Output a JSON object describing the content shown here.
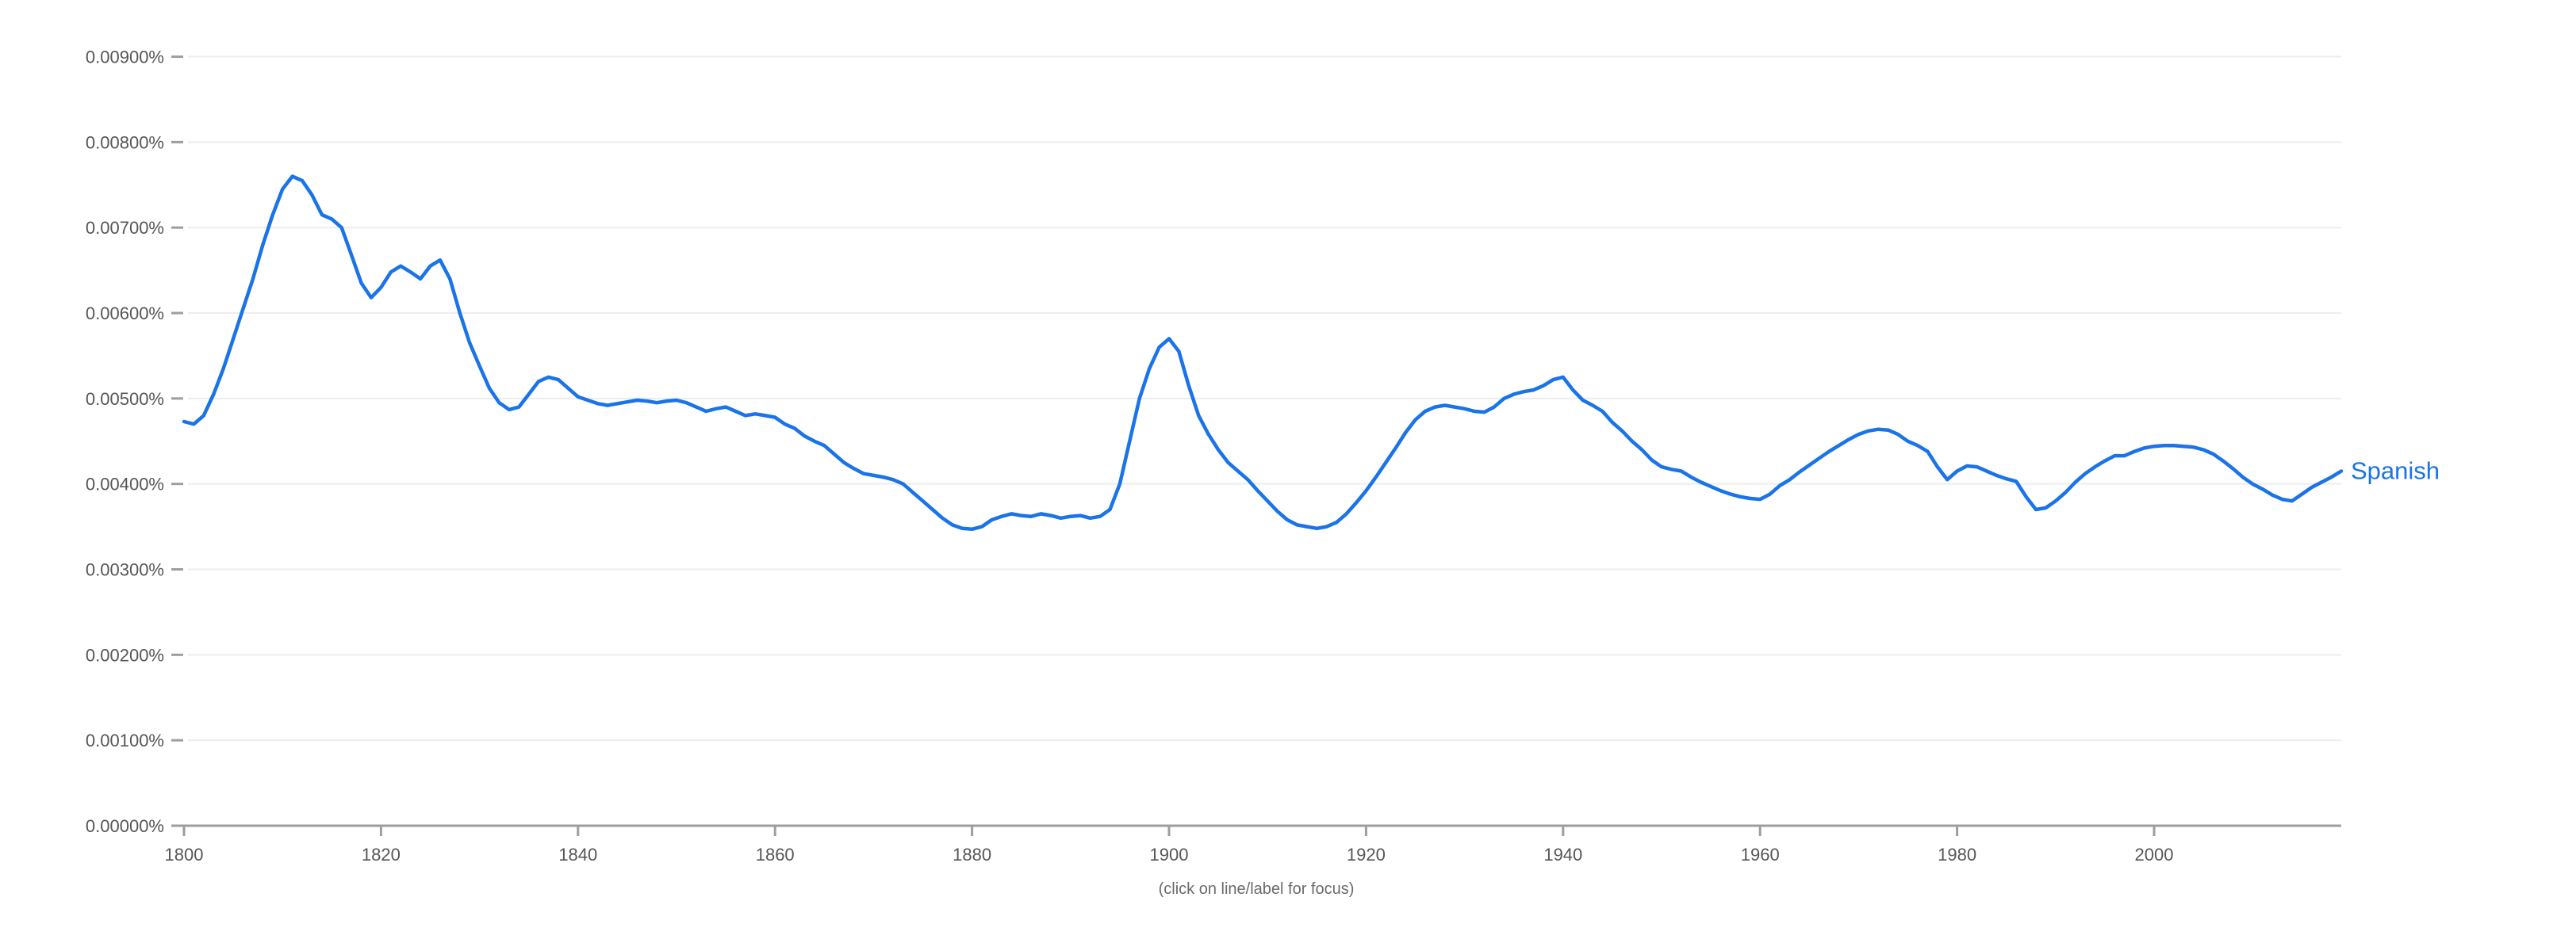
{
  "footer": {
    "hint": "(click on line/label for focus)"
  },
  "chart_data": {
    "type": "line",
    "title": "",
    "xlabel": "",
    "ylabel": "",
    "grid": "horizontal-only",
    "legend": "inline-label-at-line-end",
    "x_range": [
      1800,
      2019
    ],
    "ylim": [
      0,
      0.009
    ],
    "x_ticks": [
      1800,
      1820,
      1840,
      1860,
      1880,
      1900,
      1920,
      1940,
      1960,
      1980,
      2000
    ],
    "y_ticks": [
      {
        "value": 0.0,
        "label": "0.00000%"
      },
      {
        "value": 0.001,
        "label": "0.00100%"
      },
      {
        "value": 0.002,
        "label": "0.00200%"
      },
      {
        "value": 0.003,
        "label": "0.00300%"
      },
      {
        "value": 0.004,
        "label": "0.00400%"
      },
      {
        "value": 0.005,
        "label": "0.00500%"
      },
      {
        "value": 0.006,
        "label": "0.00600%"
      },
      {
        "value": 0.007,
        "label": "0.00700%"
      },
      {
        "value": 0.008,
        "label": "0.00800%"
      },
      {
        "value": 0.009,
        "label": "0.00900%"
      }
    ],
    "colors": {
      "series_blue": "#1a73e8",
      "grid_line": "#ededed",
      "axis_line": "#9e9e9e",
      "tick_mark": "#9e9e9e",
      "tick_label": "#565656",
      "footer_text": "#6b6b6b"
    },
    "series": [
      {
        "name": "Spanish",
        "color": "#1a73e8",
        "x_start": 1800,
        "x_step": 1,
        "values": [
          0.00473,
          0.0047,
          0.0048,
          0.00505,
          0.00535,
          0.0057,
          0.00605,
          0.0064,
          0.0068,
          0.00715,
          0.00745,
          0.0076,
          0.00755,
          0.00738,
          0.00715,
          0.0071,
          0.007,
          0.00668,
          0.00635,
          0.00618,
          0.0063,
          0.00648,
          0.00655,
          0.00648,
          0.0064,
          0.00655,
          0.00662,
          0.0064,
          0.006,
          0.00565,
          0.00538,
          0.00512,
          0.00495,
          0.00487,
          0.0049,
          0.00505,
          0.0052,
          0.00525,
          0.00522,
          0.00512,
          0.00502,
          0.00498,
          0.00494,
          0.00492,
          0.00494,
          0.00496,
          0.00498,
          0.00497,
          0.00495,
          0.00497,
          0.00498,
          0.00495,
          0.0049,
          0.00485,
          0.00488,
          0.0049,
          0.00485,
          0.0048,
          0.00482,
          0.0048,
          0.00478,
          0.0047,
          0.00465,
          0.00456,
          0.0045,
          0.00445,
          0.00435,
          0.00425,
          0.00418,
          0.00412,
          0.0041,
          0.00408,
          0.00405,
          0.004,
          0.0039,
          0.0038,
          0.0037,
          0.0036,
          0.00352,
          0.00348,
          0.00347,
          0.0035,
          0.00358,
          0.00362,
          0.00365,
          0.00363,
          0.00362,
          0.00365,
          0.00363,
          0.0036,
          0.00362,
          0.00363,
          0.0036,
          0.00362,
          0.0037,
          0.004,
          0.0045,
          0.005,
          0.00535,
          0.0056,
          0.0057,
          0.00555,
          0.00515,
          0.0048,
          0.00458,
          0.0044,
          0.00425,
          0.00415,
          0.00405,
          0.00392,
          0.0038,
          0.00368,
          0.00358,
          0.00352,
          0.0035,
          0.00348,
          0.0035,
          0.00355,
          0.00365,
          0.00378,
          0.00392,
          0.00408,
          0.00425,
          0.00442,
          0.0046,
          0.00475,
          0.00485,
          0.0049,
          0.00492,
          0.0049,
          0.00488,
          0.00485,
          0.00484,
          0.0049,
          0.005,
          0.00505,
          0.00508,
          0.0051,
          0.00515,
          0.00522,
          0.00525,
          0.0051,
          0.00498,
          0.00492,
          0.00485,
          0.00472,
          0.00462,
          0.0045,
          0.0044,
          0.00428,
          0.0042,
          0.00417,
          0.00415,
          0.00408,
          0.00402,
          0.00397,
          0.00392,
          0.00388,
          0.00385,
          0.00383,
          0.00382,
          0.00388,
          0.00398,
          0.00405,
          0.00414,
          0.00422,
          0.0043,
          0.00438,
          0.00445,
          0.00452,
          0.00458,
          0.00462,
          0.00464,
          0.00463,
          0.00458,
          0.0045,
          0.00445,
          0.00438,
          0.0042,
          0.00405,
          0.00415,
          0.00421,
          0.0042,
          0.00415,
          0.0041,
          0.00406,
          0.00403,
          0.00385,
          0.0037,
          0.00372,
          0.0038,
          0.0039,
          0.00402,
          0.00412,
          0.0042,
          0.00427,
          0.00433,
          0.00433,
          0.00438,
          0.00442,
          0.00444,
          0.00445,
          0.00445,
          0.00444,
          0.00443,
          0.0044,
          0.00435,
          0.00427,
          0.00418,
          0.00408,
          0.004,
          0.00394,
          0.00387,
          0.00382,
          0.0038,
          0.00388,
          0.00396,
          0.00402,
          0.00408,
          0.00415
        ]
      }
    ]
  }
}
